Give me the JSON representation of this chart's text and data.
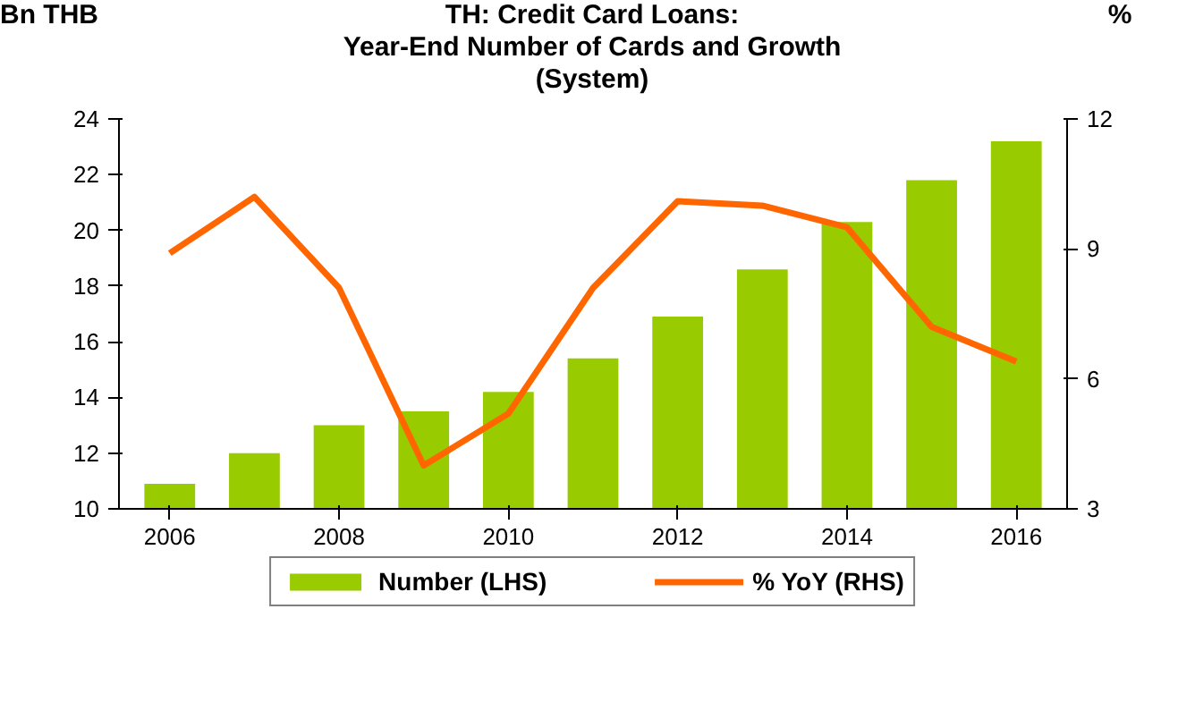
{
  "chart_data": {
    "type": "bar",
    "title": "TH: Credit Card Loans:\nYear-End Number of Cards  and Growth\n(System)",
    "ylabel": "Bn THB",
    "y2label": "%",
    "x": [
      2006,
      2007,
      2008,
      2009,
      2010,
      2011,
      2012,
      2013,
      2014,
      2015,
      2016
    ],
    "xlim": [
      2005.4,
      2016.6
    ],
    "xticks": [
      2006,
      2008,
      2010,
      2012,
      2014,
      2016
    ],
    "ylim": [
      10,
      24
    ],
    "yticks": [
      10,
      12,
      14,
      16,
      18,
      20,
      22,
      24
    ],
    "y2lim": [
      3,
      12
    ],
    "y2ticks": [
      3,
      6,
      9,
      12
    ],
    "series": [
      {
        "name": "Number (LHS)",
        "color": "#99cc00",
        "values": [
          10.9,
          12.0,
          13.0,
          13.5,
          14.2,
          15.4,
          16.9,
          18.6,
          20.3,
          21.8,
          23.2
        ]
      },
      {
        "name": "% YoY (RHS)",
        "type": "line",
        "axis": "y2",
        "color": "#ff6600",
        "values": [
          8.9,
          10.2,
          8.1,
          4.0,
          5.2,
          8.1,
          10.1,
          10.0,
          9.5,
          7.2,
          6.4
        ]
      }
    ],
    "grid": false,
    "legend": "bottom"
  }
}
